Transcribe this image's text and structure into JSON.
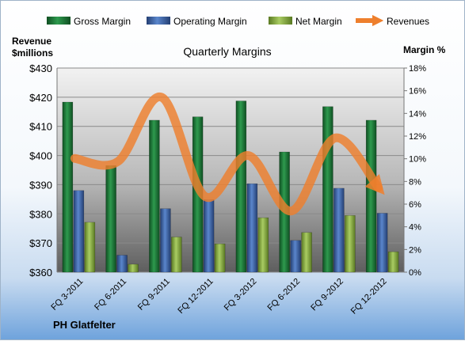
{
  "chart_data": {
    "type": "bar",
    "title": "Quarterly Margins",
    "company": "PH Glatfelter",
    "categories": [
      "FQ 3-2011",
      "FQ 6-2011",
      "FQ 9-2011",
      "FQ 12-2011",
      "FQ 3-2012",
      "FQ 6-2012",
      "FQ 9-2012",
      "FQ 12-2012"
    ],
    "left_axis": {
      "label_line1": "Revenue",
      "label_line2": "$millions",
      "range": [
        360,
        430
      ],
      "ticks": [
        360,
        370,
        380,
        390,
        400,
        410,
        420,
        430
      ],
      "tick_labels": [
        "$360",
        "$370",
        "$380",
        "$390",
        "$400",
        "$410",
        "$420",
        "$430"
      ]
    },
    "right_axis": {
      "label": "Margin %",
      "range": [
        0,
        18
      ],
      "ticks": [
        0,
        2,
        4,
        6,
        8,
        10,
        12,
        14,
        16,
        18
      ],
      "tick_labels": [
        "0%",
        "2%",
        "4%",
        "6%",
        "8%",
        "10%",
        "12%",
        "14%",
        "16%",
        "18%"
      ]
    },
    "series": [
      {
        "name": "Gross Margin",
        "type": "bar",
        "axis": "right",
        "color": "#1f7a3a",
        "values": [
          15.0,
          9.4,
          13.4,
          13.7,
          15.1,
          10.6,
          14.6,
          13.4
        ]
      },
      {
        "name": "Operating Margin",
        "type": "bar",
        "axis": "right",
        "color": "#3f6db3",
        "values": [
          7.2,
          1.5,
          5.6,
          6.4,
          7.8,
          2.8,
          7.4,
          5.2
        ]
      },
      {
        "name": "Net Margin",
        "type": "bar",
        "axis": "right",
        "color": "#8db545",
        "values": [
          4.4,
          0.7,
          3.1,
          2.5,
          4.8,
          3.5,
          5.0,
          1.8
        ]
      },
      {
        "name": "Revenues",
        "type": "line",
        "axis": "left",
        "color": "#ee7f2d",
        "values": [
          399,
          398,
          420,
          386,
          400,
          381,
          406,
          389
        ]
      }
    ],
    "grid": true,
    "legend_position": "top"
  }
}
